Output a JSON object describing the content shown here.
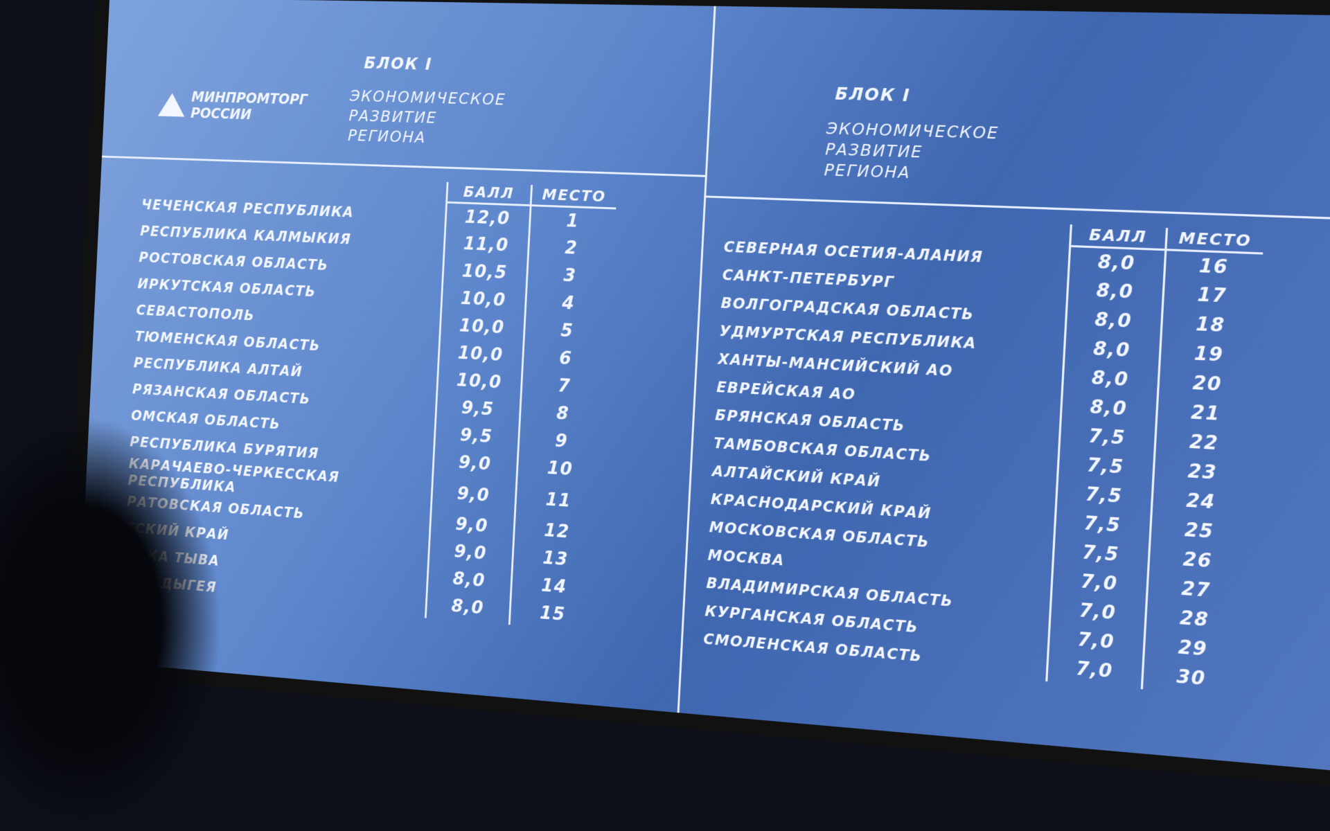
{
  "logo": {
    "line1": "МИНПРОМТОРГ",
    "line2": "РОССИИ"
  },
  "left": {
    "block": "БЛОК I",
    "subtitle": [
      "ЭКОНОМИЧЕСКОЕ",
      "РАЗВИТИЕ",
      "РЕГИОНА"
    ],
    "col_score": "БАЛЛ",
    "col_place": "МЕСТО",
    "rows": [
      {
        "name": "ЧЕЧЕНСКАЯ РЕСПУБЛИКА",
        "score": "12,0",
        "place": "1"
      },
      {
        "name": "РЕСПУБЛИКА КАЛМЫКИЯ",
        "score": "11,0",
        "place": "2"
      },
      {
        "name": "РОСТОВСКАЯ ОБЛАСТЬ",
        "score": "10,5",
        "place": "3"
      },
      {
        "name": "ИРКУТСКАЯ ОБЛАСТЬ",
        "score": "10,0",
        "place": "4"
      },
      {
        "name": "СЕВАСТОПОЛЬ",
        "score": "10,0",
        "place": "5"
      },
      {
        "name": "ТЮМЕНСКАЯ ОБЛАСТЬ",
        "score": "10,0",
        "place": "6"
      },
      {
        "name": "РЕСПУБЛИКА АЛТАЙ",
        "score": "10,0",
        "place": "7"
      },
      {
        "name": "РЯЗАНСКАЯ ОБЛАСТЬ",
        "score": "9,5",
        "place": "8"
      },
      {
        "name": "ОМСКАЯ ОБЛАСТЬ",
        "score": "9,5",
        "place": "9"
      },
      {
        "name": "РЕСПУБЛИКА БУРЯТИЯ",
        "score": "9,0",
        "place": "10"
      },
      {
        "name": "КАРАЧАЕВО-ЧЕРКЕССКАЯ РЕСПУБЛИКА",
        "score": "9,0",
        "place": "11"
      },
      {
        "name": "РАТОВСКАЯ ОБЛАСТЬ",
        "score": "9,0",
        "place": "12"
      },
      {
        "name": "ТСКИЙ КРАЙ",
        "score": "9,0",
        "place": "13"
      },
      {
        "name": "ЛИКА ТЫВА",
        "score": "8,0",
        "place": "14"
      },
      {
        "name": "КА АДЫГЕЯ",
        "score": "8,0",
        "place": "15"
      }
    ]
  },
  "right": {
    "block": "БЛОК I",
    "subtitle": [
      "ЭКОНОМИЧЕСКОЕ",
      "РАЗВИТИЕ",
      "РЕГИОНА"
    ],
    "col_score": "БАЛЛ",
    "col_place": "МЕСТО",
    "rows": [
      {
        "name": "СЕВЕРНАЯ ОСЕТИЯ-АЛАНИЯ",
        "score": "8,0",
        "place": "16"
      },
      {
        "name": "САНКТ-ПЕТЕРБУРГ",
        "score": "8,0",
        "place": "17"
      },
      {
        "name": "ВОЛГОГРАДСКАЯ ОБЛАСТЬ",
        "score": "8,0",
        "place": "18"
      },
      {
        "name": "УДМУРТСКАЯ РЕСПУБЛИКА",
        "score": "8,0",
        "place": "19"
      },
      {
        "name": "ХАНТЫ-МАНСИЙСКИЙ АО",
        "score": "8,0",
        "place": "20"
      },
      {
        "name": "ЕВРЕЙСКАЯ АО",
        "score": "8,0",
        "place": "21"
      },
      {
        "name": "БРЯНСКАЯ ОБЛАСТЬ",
        "score": "7,5",
        "place": "22"
      },
      {
        "name": "ТАМБОВСКАЯ ОБЛАСТЬ",
        "score": "7,5",
        "place": "23"
      },
      {
        "name": "АЛТАЙСКИЙ КРАЙ",
        "score": "7,5",
        "place": "24"
      },
      {
        "name": "КРАСНОДАРСКИЙ КРАЙ",
        "score": "7,5",
        "place": "25"
      },
      {
        "name": "МОСКОВСКАЯ ОБЛАСТЬ",
        "score": "7,5",
        "place": "26"
      },
      {
        "name": "МОСКВА",
        "score": "7,0",
        "place": "27"
      },
      {
        "name": "ВЛАДИМИРСКАЯ ОБЛАСТЬ",
        "score": "7,0",
        "place": "28"
      },
      {
        "name": "КУРГАНСКАЯ ОБЛАСТЬ",
        "score": "7,0",
        "place": "29"
      },
      {
        "name": "СМОЛЕНСКАЯ ОБЛАСТЬ",
        "score": "7,0",
        "place": "30"
      }
    ]
  }
}
